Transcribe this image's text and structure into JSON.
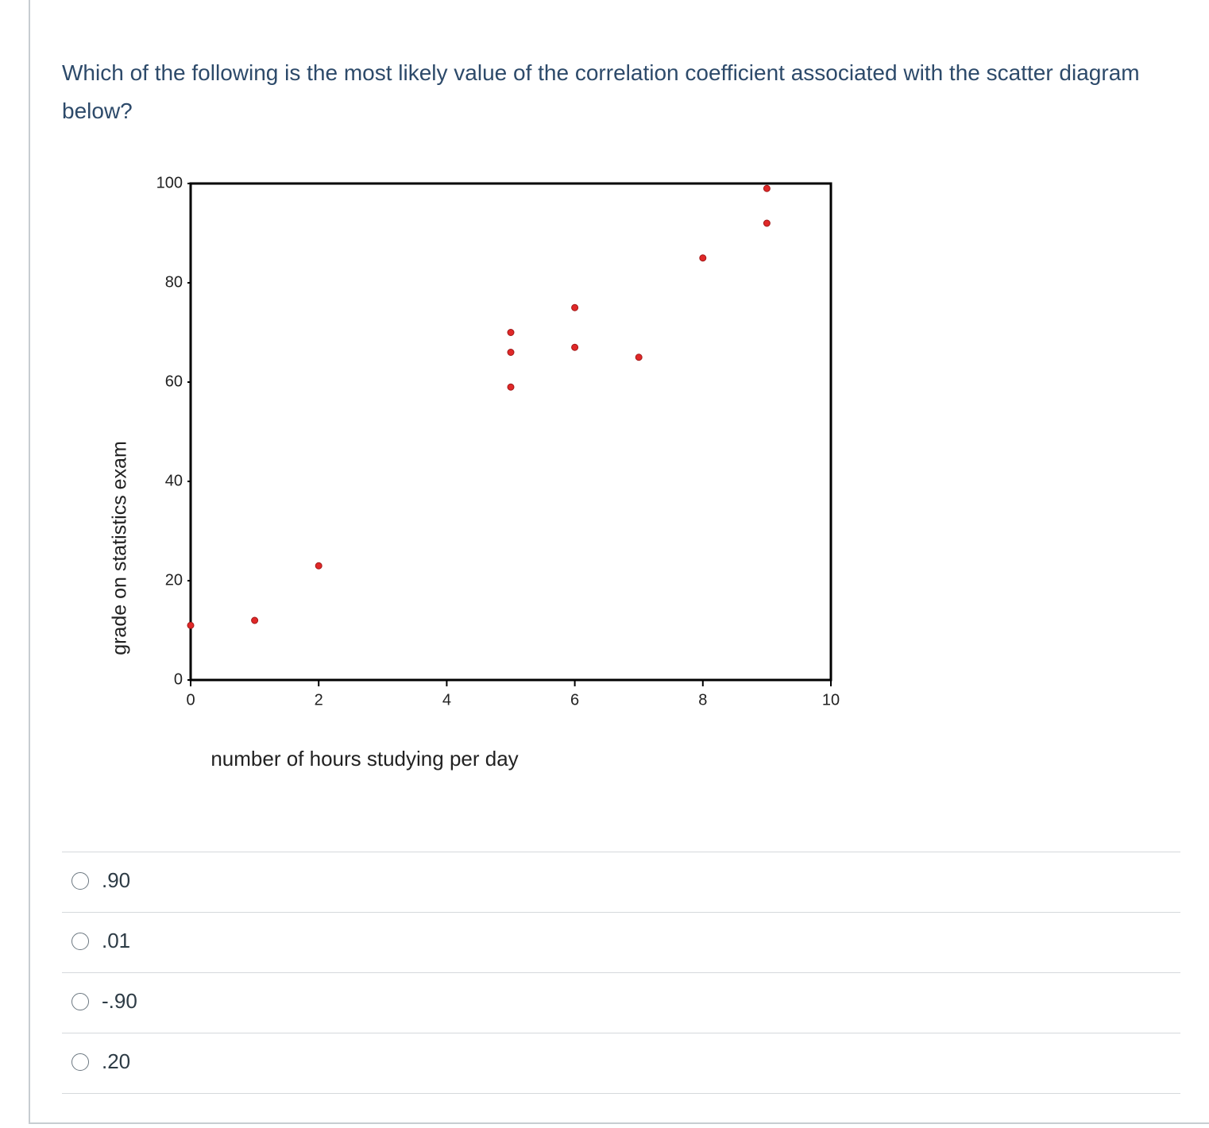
{
  "question": "Which of the following is the most likely value of the correlation coefficient associated with the scatter diagram below?",
  "chart_data": {
    "type": "scatter",
    "x_label": "number of hours studying per day",
    "y_label": "grade on statistics exam",
    "series": [
      {
        "color": "#e02828",
        "x": [
          0,
          1,
          2,
          5,
          5,
          5,
          6,
          6,
          7,
          8,
          9,
          9
        ],
        "values": [
          11,
          12,
          23,
          59,
          66,
          70,
          67,
          75,
          65,
          85,
          92,
          99
        ]
      }
    ],
    "xlim": [
      0,
      10
    ],
    "xticks": [
      0,
      2,
      4,
      6,
      8,
      10
    ],
    "ylim": [
      0,
      100
    ],
    "yticks": [
      0,
      20,
      40,
      60,
      80,
      100
    ],
    "grid": false
  },
  "options": [
    ".90",
    ".01",
    "-.90",
    ".20"
  ]
}
